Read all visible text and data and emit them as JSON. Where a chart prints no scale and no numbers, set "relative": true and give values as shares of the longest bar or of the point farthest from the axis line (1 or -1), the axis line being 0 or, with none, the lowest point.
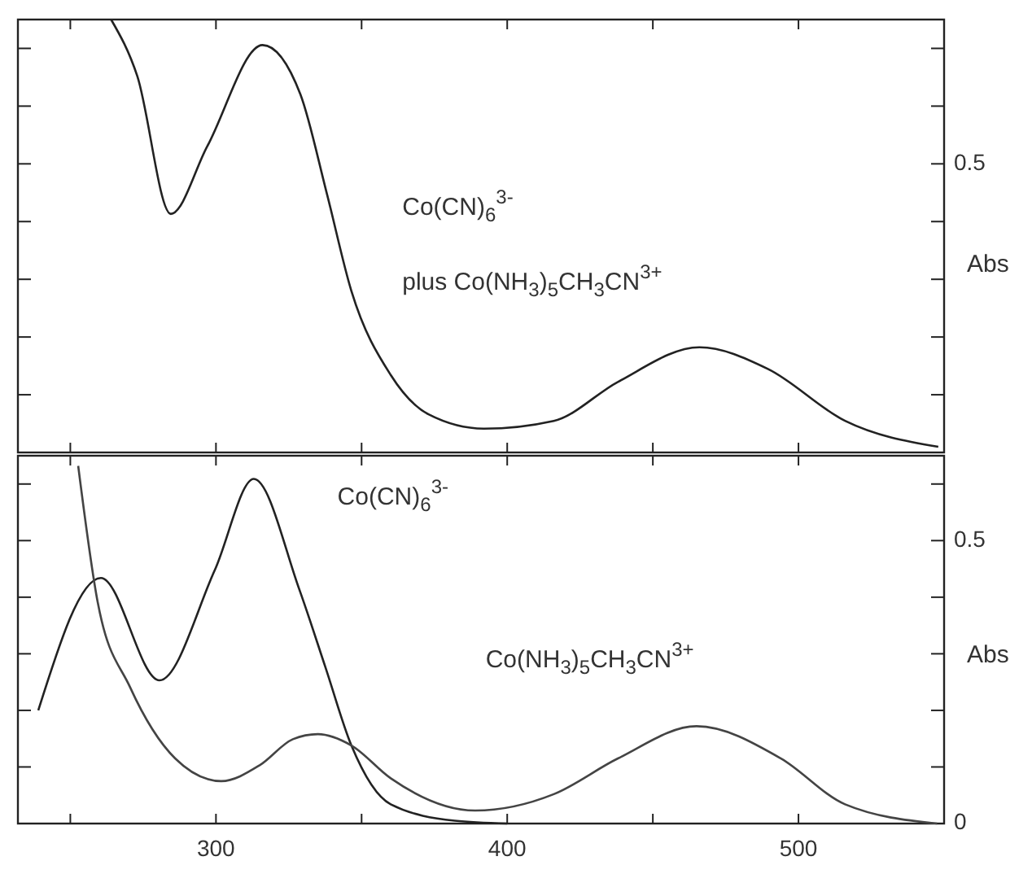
{
  "chart_data": [
    {
      "type": "line",
      "relative": true,
      "tick_labels": false,
      "ylabel": "Abs",
      "xlim": [
        232,
        550
      ],
      "xticks": [
        {
          "value": 250,
          "label": null
        },
        300,
        {
          "value": 350,
          "label": null
        },
        400,
        {
          "value": 450,
          "label": null
        },
        500
      ],
      "grid": false,
      "marker": "none",
      "line_style": "solid",
      "annotations": [
        "Co(CN)$_{6}$$^{3-}$",
        "plus  Co(NH$_{3}$)$_{5}$CH$_{3}$CN$^{3+}$",
        "0.5"
      ],
      "series": [
        {
          "color": "#222222",
          "x": [
            264,
            273,
            284.5,
            297,
            316,
            329,
            338,
            346.5,
            360,
            373,
            392,
            416,
            438,
            466,
            489.5,
            516,
            548
          ],
          "values": [
            1,
            0.869,
            0.551,
            0.707,
            0.941,
            0.827,
            0.6,
            0.373,
            0.179,
            0.088,
            0.055,
            0.073,
            0.163,
            0.243,
            0.193,
            0.073,
            0.013
          ]
        }
      ]
    },
    {
      "type": "line",
      "ylabel": "Abs",
      "xlim": [
        232,
        550
      ],
      "xticks": [
        {
          "value": 250,
          "label": null
        },
        300,
        {
          "value": 350,
          "label": null
        },
        400,
        {
          "value": 450,
          "label": null
        },
        500
      ],
      "ylim": [
        0,
        0.65
      ],
      "yticks": [
        0,
        {
          "value": 0.1,
          "label": null
        },
        {
          "value": 0.2,
          "label": null
        },
        {
          "value": 0.3,
          "label": null
        },
        {
          "value": 0.4,
          "label": null
        },
        {
          "value": 0.5,
          "label": "0.5"
        },
        {
          "value": 0.6,
          "label": null
        }
      ],
      "grid": false,
      "marker": "none",
      "line_style": "solid",
      "series": [
        {
          "name": "Co(CN)$_{6}$$^{3-}$",
          "color": "#222222",
          "x": [
            239,
            260.5,
            280.6,
            299.6,
            313,
            328.6,
            337.6,
            346.5,
            360,
            382,
            400
          ],
          "values": [
            0.2,
            0.434,
            0.253,
            0.448,
            0.609,
            0.414,
            0.276,
            0.138,
            0.034,
            0.005,
            0.0
          ]
        },
        {
          "name": "Co(NH$_{3}$)$_{5}$CH$_{3}$CN$^{3+}$",
          "color": "#444444",
          "x": [
            252.7,
            259.4,
            270.5,
            286,
            301.8,
            315,
            326.4,
            335,
            346.5,
            360,
            389,
            416,
            438,
            465,
            494,
            516,
            547.6
          ],
          "values": [
            0.632,
            0.391,
            0.241,
            0.115,
            0.075,
            0.103,
            0.149,
            0.158,
            0.138,
            0.08,
            0.023,
            0.052,
            0.115,
            0.172,
            0.115,
            0.034,
            0.0
          ]
        }
      ]
    }
  ]
}
